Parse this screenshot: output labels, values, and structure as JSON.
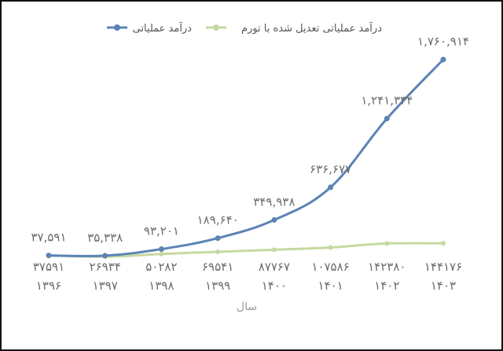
{
  "chart_data": {
    "type": "line",
    "title": "",
    "xlabel": "سال",
    "ylabel": "",
    "categories": [
      "۱۳۹۶",
      "۱۳۹۷",
      "۱۳۹۸",
      "۱۳۹۹",
      "۱۴۰۰",
      "۱۴۰۱",
      "۱۴۰۲",
      "۱۴۰۳"
    ],
    "x": [
      1396,
      1397,
      1398,
      1399,
      1400,
      1401,
      1402,
      1403
    ],
    "series": [
      {
        "name": "درآمد عملیاتی",
        "color": "#5b83b5",
        "values": [
          37591,
          35338,
          93201,
          189640,
          349938,
          636677,
          1241344,
          1760914
        ],
        "labels": [
          "۳۷,۵۹۱",
          "۳۵,۳۳۸",
          "۹۳,۲۰۱",
          "۱۸۹,۶۴۰",
          "۳۴۹,۹۳۸",
          "۶۳۶,۶۷۷",
          "۱,۲۴۱,۳۴۴",
          "۱,۷۶۰,۹۱۴"
        ]
      },
      {
        "name": "درآمد عملیاتی تعدیل شده با تورم",
        "color": "#c6d9a0",
        "values": [
          37591,
          26934,
          50282,
          69541,
          87767,
          107586,
          142380,
          144176
        ],
        "labels": [
          "۳۷۵۹۱",
          "۲۶۹۳۴",
          "۵۰۲۸۲",
          "۶۹۵۴۱",
          "۸۷۷۶۷",
          "۱۰۷۵۸۶",
          "۱۴۲۳۸۰",
          "۱۴۴۱۷۶"
        ]
      }
    ],
    "ylim": [
      0,
      1800000
    ],
    "grid": false,
    "legend_position": "top"
  }
}
